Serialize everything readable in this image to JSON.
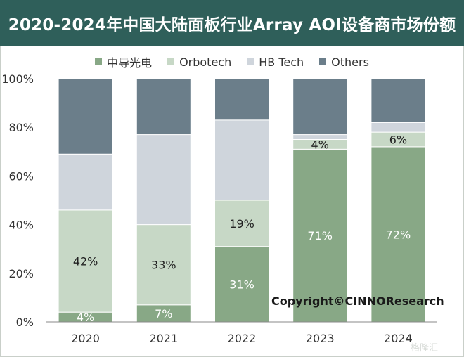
{
  "chart_data": {
    "type": "bar",
    "stacked": true,
    "title": "2020-2024年中国大陆面板行业Array AOI设备商市场份额",
    "xlabel": "",
    "ylabel": "",
    "categories": [
      "2020",
      "2021",
      "2022",
      "2023",
      "2024"
    ],
    "ylim": [
      0,
      100
    ],
    "yticks": [
      "0%",
      "20%",
      "40%",
      "60%",
      "80%",
      "100%"
    ],
    "legend_position": "top",
    "series": [
      {
        "name": "中导光电",
        "color": "#88a886",
        "values": [
          4,
          7,
          31,
          71,
          72
        ],
        "labels": [
          "4%",
          "7%",
          "31%",
          "71%",
          "72%"
        ]
      },
      {
        "name": "Orbotech",
        "color": "#c7d8c6",
        "values": [
          42,
          33,
          19,
          4,
          6
        ],
        "labels": [
          "42%",
          "33%",
          "19%",
          "4%",
          "6%"
        ]
      },
      {
        "name": "HB Tech",
        "color": "#cfd5dc",
        "values": [
          23,
          37,
          33,
          2,
          4
        ],
        "labels": [
          "",
          "",
          "",
          "",
          ""
        ]
      },
      {
        "name": "Others",
        "color": "#6b7e8a",
        "values": [
          31,
          23,
          17,
          23,
          18
        ],
        "labels": [
          "",
          "",
          "",
          "",
          ""
        ]
      }
    ],
    "label_colors": [
      "#ffffff",
      "#222222",
      "#222222",
      "#222222"
    ]
  },
  "annotations": {
    "copyright": "Copyright©CINNOResearch",
    "watermark": "格隆汇"
  }
}
